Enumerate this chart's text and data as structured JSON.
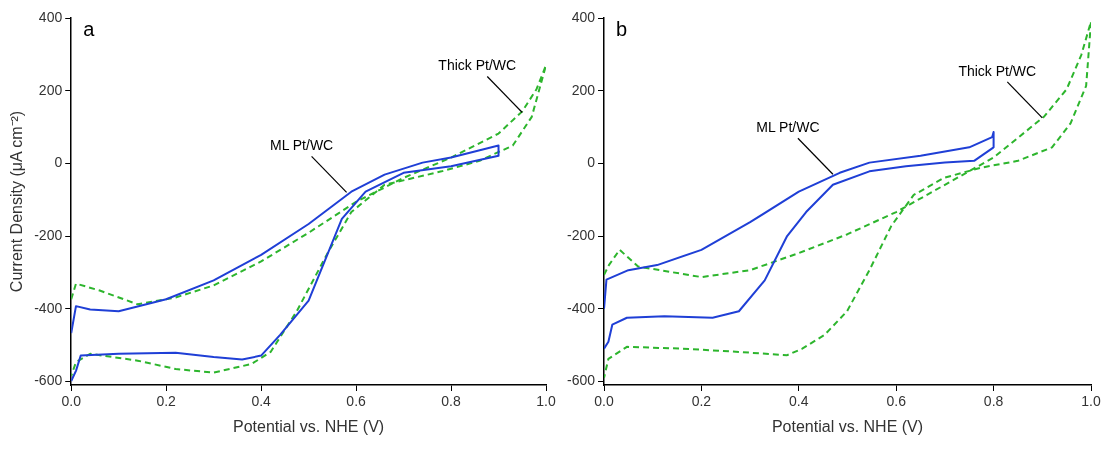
{
  "chart_data": [
    {
      "type": "line",
      "title": "a",
      "xlabel": "Potential vs. NHE (V)",
      "ylabel": "Current Density (μA cm⁻²)",
      "xlim": [
        0,
        1.0
      ],
      "xticks": [
        {
          "value": 0,
          "label": "0.0"
        },
        {
          "value": 0.2,
          "label": "0.2"
        },
        {
          "value": 0.4,
          "label": "0.4"
        },
        {
          "value": 0.6,
          "label": "0.6"
        },
        {
          "value": 0.8,
          "label": "0.8"
        },
        {
          "value": 1.0,
          "label": "1.0"
        }
      ],
      "ylim": [
        -610,
        400
      ],
      "yticks": [
        -600,
        -400,
        -200,
        0,
        200,
        400
      ],
      "grid": false,
      "legend": false,
      "marker": "none",
      "series": [
        {
          "color": "#1f3fd6",
          "line_style": "solid",
          "x": [
            0,
            0.01,
            0.04,
            0.1,
            0.2,
            0.3,
            0.4,
            0.5,
            0.59,
            0.66,
            0.74,
            0.8,
            0.9,
            0.9,
            0.8,
            0.7,
            0.62,
            0.57,
            0.5,
            0.44,
            0.4,
            0.36,
            0.3,
            0.22,
            0.1,
            0.02,
            0.01,
            0.0
          ],
          "values": [
            -467,
            -393,
            -402,
            -407,
            -374,
            -322,
            -252,
            -167,
            -78,
            -31,
            2,
            16,
            49,
            21,
            -8,
            -26,
            -78,
            -153,
            -378,
            -472,
            -529,
            -540,
            -533,
            -521,
            -524,
            -529,
            -571,
            -599
          ]
        },
        {
          "color": "#2db52d",
          "line_style": "dashed",
          "x": [
            0,
            0.01,
            0.06,
            0.14,
            0.22,
            0.3,
            0.4,
            0.5,
            0.6,
            0.7,
            0.8,
            0.9,
            0.95,
            0.98,
            1.0,
            0.97,
            0.93,
            0.86,
            0.78,
            0.66,
            0.59,
            0.54,
            0.475,
            0.42,
            0.38,
            0.3,
            0.22,
            0.14,
            0.04,
            0.01,
            0
          ],
          "values": [
            -374,
            -331,
            -350,
            -388,
            -369,
            -336,
            -270,
            -191,
            -106,
            -40,
            16,
            82,
            143,
            204,
            270,
            128,
            49,
            7,
            -22,
            -59,
            -134,
            -247,
            -407,
            -519,
            -552,
            -576,
            -566,
            -543,
            -524,
            -547,
            -585
          ]
        }
      ],
      "annotations": [
        {
          "text": "ML Pt/WC",
          "x": 0.58,
          "y": -80
        },
        {
          "text": "Thick Pt/WC",
          "x": 0.95,
          "y": 140
        }
      ]
    },
    {
      "type": "line",
      "title": "b",
      "xlabel": "Potential vs. NHE (V)",
      "xlim": [
        0,
        1.0
      ],
      "xticks": [
        {
          "value": 0,
          "label": "0.0"
        },
        {
          "value": 0.2,
          "label": "0.2"
        },
        {
          "value": 0.4,
          "label": "0.4"
        },
        {
          "value": 0.6,
          "label": "0.6"
        },
        {
          "value": 0.8,
          "label": "0.8"
        },
        {
          "value": 1.0,
          "label": "1.0"
        }
      ],
      "ylim": [
        -610,
        400
      ],
      "yticks": [
        -600,
        -400,
        -200,
        0,
        200,
        400
      ],
      "grid": false,
      "legend": false,
      "marker": "none",
      "series": [
        {
          "color": "#1f3fd6",
          "line_style": "solid",
          "x": [
            0,
            0.005,
            0.05,
            0.109,
            0.2,
            0.3,
            0.4,
            0.484,
            0.545,
            0.65,
            0.75,
            0.797,
            0.8,
            0.8,
            0.76,
            0.7,
            0.62,
            0.545,
            0.47,
            0.415,
            0.376,
            0.33,
            0.277,
            0.223,
            0.124,
            0.047,
            0.017,
            0.009,
            0
          ],
          "values": [
            -400,
            -320,
            -294,
            -280,
            -238,
            -162,
            -78,
            -26,
            2,
            21,
            44,
            72,
            86,
            44,
            7,
            2,
            -8,
            -22,
            -59,
            -134,
            -200,
            -322,
            -407,
            -425,
            -421,
            -425,
            -444,
            -491,
            -510
          ]
        },
        {
          "color": "#2db52d",
          "line_style": "dashed",
          "x": [
            0,
            0.01,
            0.032,
            0.07,
            0.2,
            0.3,
            0.4,
            0.5,
            0.6,
            0.7,
            0.8,
            0.904,
            0.95,
            0.98,
            1.0,
            0.99,
            0.958,
            0.92,
            0.85,
            0.774,
            0.698,
            0.636,
            0.59,
            0.545,
            0.499,
            0.453,
            0.407,
            0.376,
            0.277,
            0.162,
            0.047,
            0.009,
            0
          ],
          "values": [
            -307,
            -280,
            -238,
            -284,
            -313,
            -294,
            -247,
            -195,
            -134,
            -59,
            16,
            129,
            204,
            298,
            390,
            213,
            110,
            44,
            7,
            -12,
            -40,
            -87,
            -172,
            -294,
            -407,
            -472,
            -510,
            -528,
            -519,
            -510,
            -505,
            -538,
            -590
          ]
        }
      ],
      "annotations": [
        {
          "text": "ML Pt/WC",
          "x": 0.47,
          "y": -30
        },
        {
          "text": "Thick Pt/WC",
          "x": 0.9,
          "y": 125
        }
      ]
    }
  ]
}
